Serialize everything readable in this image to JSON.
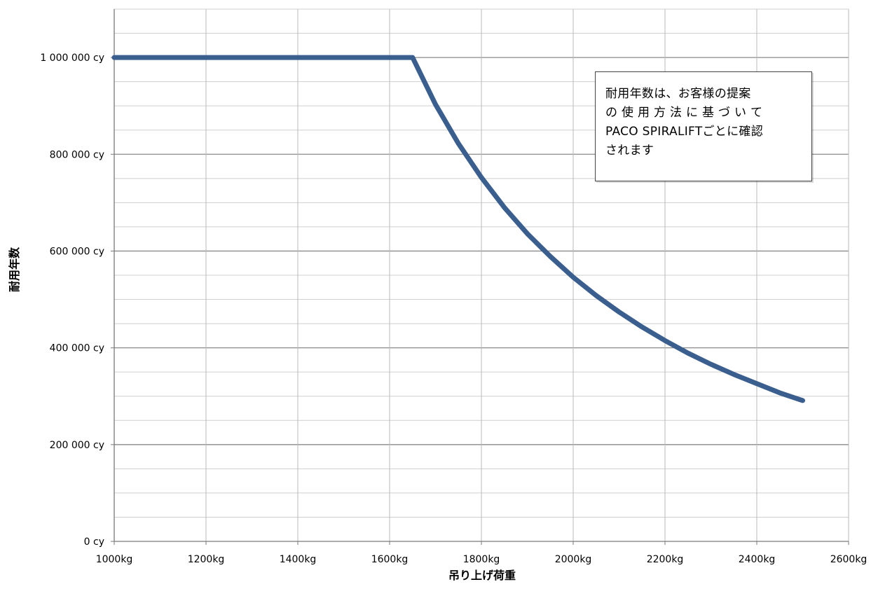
{
  "chart_data": {
    "type": "line",
    "xlabel": "吊り上げ荷重",
    "ylabel": "耐用年数",
    "x_unit": "kg",
    "y_unit": "cy",
    "xlim": [
      1000,
      2600
    ],
    "ylim": [
      0,
      1100000
    ],
    "x_ticks": [
      1000,
      1200,
      1400,
      1600,
      1800,
      2000,
      2200,
      2400,
      2600
    ],
    "x_tick_labels": [
      "1000kg",
      "1200kg",
      "1400kg",
      "1600kg",
      "1800kg",
      "2000kg",
      "2200kg",
      "2400kg",
      "2600kg"
    ],
    "y_ticks": [
      0,
      200000,
      400000,
      600000,
      800000,
      1000000
    ],
    "y_tick_labels": [
      "0 cy",
      "200 000 cy",
      "400 000 cy",
      "600 000 cy",
      "800 000 cy",
      "1 000 000 cy"
    ],
    "grid": true,
    "series": [
      {
        "color": "#3a5f8f",
        "x": [
          1000,
          1100,
          1200,
          1300,
          1400,
          1500,
          1600,
          1650,
          1700,
          1750,
          1800,
          1850,
          1900,
          1950,
          2000,
          2050,
          2100,
          2150,
          2200,
          2250,
          2300,
          2350,
          2400,
          2450,
          2500
        ],
        "y": [
          1000000,
          1000000,
          1000000,
          1000000,
          1000000,
          1000000,
          1000000,
          1000000,
          903000,
          822000,
          752000,
          690000,
          636000,
          589000,
          546000,
          508000,
          474000,
          443000,
          415000,
          389000,
          366000,
          345000,
          326000,
          307000,
          291000
        ]
      }
    ],
    "annotations": [
      {
        "lines": [
          "耐用年数は、お客様の提案",
          "の 使 用 方 法 に 基 づ い て",
          "PACO SPIRALIFTごとに確認",
          "されます"
        ]
      }
    ]
  }
}
